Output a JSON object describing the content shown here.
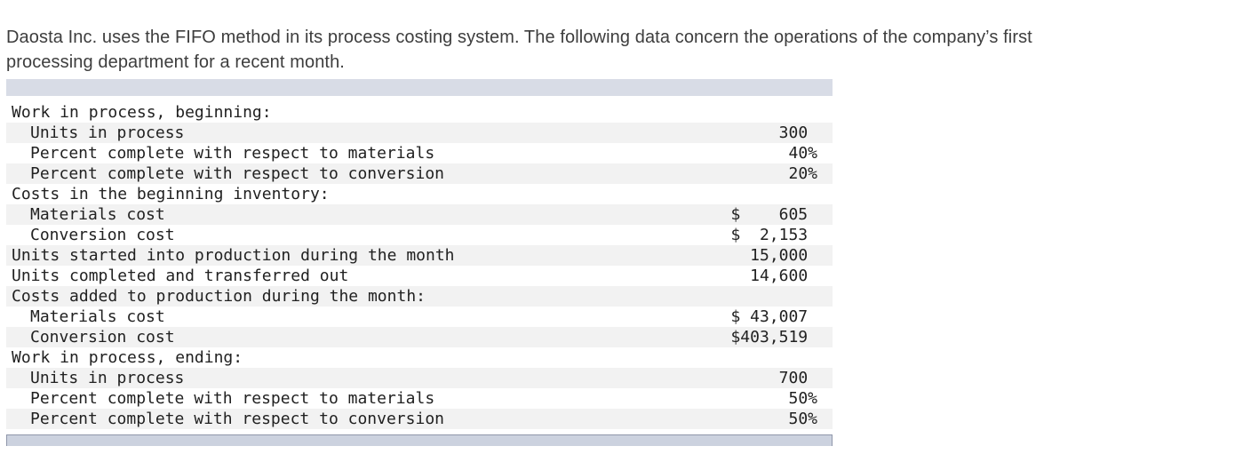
{
  "intro": {
    "lines": [
      "Daosta Inc. uses the FIFO method in its process costing system. The following data concern the operations of the company’s first",
      "processing department for a recent month."
    ]
  },
  "table": {
    "rows": [
      {
        "label": "Work in process, beginning:",
        "value": "",
        "indent": 0
      },
      {
        "label": "Units in process",
        "value": "300 ",
        "indent": 1
      },
      {
        "label": "Percent complete with respect to materials",
        "value": "40%",
        "indent": 1
      },
      {
        "label": "Percent complete with respect to conversion",
        "value": "20%",
        "indent": 1
      },
      {
        "label": "Costs in the beginning inventory:",
        "value": "",
        "indent": 0
      },
      {
        "label": "Materials cost",
        "value": "$    605 ",
        "indent": 1
      },
      {
        "label": "Conversion cost",
        "value": "$  2,153 ",
        "indent": 1
      },
      {
        "label": "Units started into production during the month",
        "value": "15,000 ",
        "indent": 0
      },
      {
        "label": "Units completed and transferred out",
        "value": "14,600 ",
        "indent": 0
      },
      {
        "label": "Costs added to production during the month:",
        "value": "",
        "indent": 0
      },
      {
        "label": "Materials cost",
        "value": "$ 43,007 ",
        "indent": 1
      },
      {
        "label": "Conversion cost",
        "value": "$403,519 ",
        "indent": 1
      },
      {
        "label": "Work in process, ending:",
        "value": "",
        "indent": 0
      },
      {
        "label": "Units in process",
        "value": "700 ",
        "indent": 1
      },
      {
        "label": "Percent complete with respect to materials",
        "value": "50%",
        "indent": 1
      },
      {
        "label": "Percent complete with respect to conversion",
        "value": "50%",
        "indent": 1
      }
    ],
    "colors": {
      "header_bar": "#d8dce6",
      "stripe": "#f2f2f2",
      "footer_bar": "#ccd2df",
      "footer_border": "#8f97aa"
    }
  }
}
